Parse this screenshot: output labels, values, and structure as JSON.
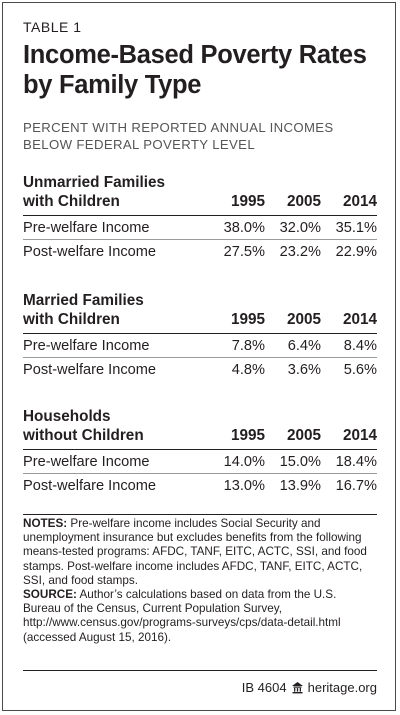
{
  "header": {
    "table_label": "TABLE 1",
    "title_line1": "Income-Based Poverty Rates",
    "title_line2": "by Family Type",
    "subtitle_line1": "PERCENT WITH REPORTED ANNUAL INCOMES",
    "subtitle_line2": "BELOW FEDERAL POVERTY LEVEL"
  },
  "sections": [
    {
      "title_line1": "Unmarried Families",
      "title_line2": "with Children",
      "years": [
        "1995",
        "2005",
        "2014"
      ],
      "rows": [
        {
          "label": "Pre-welfare Income",
          "values": [
            "38.0%",
            "32.0%",
            "35.1%"
          ]
        },
        {
          "label": "Post-welfare Income",
          "values": [
            "27.5%",
            "23.2%",
            "22.9%"
          ]
        }
      ]
    },
    {
      "title_line1": "Married Families",
      "title_line2": "with Children",
      "years": [
        "1995",
        "2005",
        "2014"
      ],
      "rows": [
        {
          "label": "Pre-welfare Income",
          "values": [
            "7.8%",
            "6.4%",
            "8.4%"
          ]
        },
        {
          "label": "Post-welfare Income",
          "values": [
            "4.8%",
            "3.6%",
            "5.6%"
          ]
        }
      ]
    },
    {
      "title_line1": "Households",
      "title_line2": "without Children",
      "years": [
        "1995",
        "2005",
        "2014"
      ],
      "rows": [
        {
          "label": "Pre-welfare Income",
          "values": [
            "14.0%",
            "15.0%",
            "18.4%"
          ]
        },
        {
          "label": "Post-welfare Income",
          "values": [
            "13.0%",
            "13.9%",
            "16.7%"
          ]
        }
      ]
    }
  ],
  "notes": {
    "notes_label": "NOTES:",
    "notes_text": " Pre-welfare income includes Social Security and unemployment insurance but excludes benefits from the following means-tested programs: AFDC, TANF, EITC, ACTC, SSI, and food stamps. Post-welfare income includes AFDC, TANF, EITC, ACTC, SSI, and food stamps.",
    "source_label": "SOURCE:",
    "source_text": " Author’s calculations based on data from the U.S. Bureau of the Census, Current Population Survey, http://www.census.gov/programs-surveys/cps/data-detail.html (accessed August 15, 2016)."
  },
  "footer": {
    "ib_number": "IB 4604",
    "site": "heritage.org",
    "logo_icon": "heritage-bell-icon"
  }
}
